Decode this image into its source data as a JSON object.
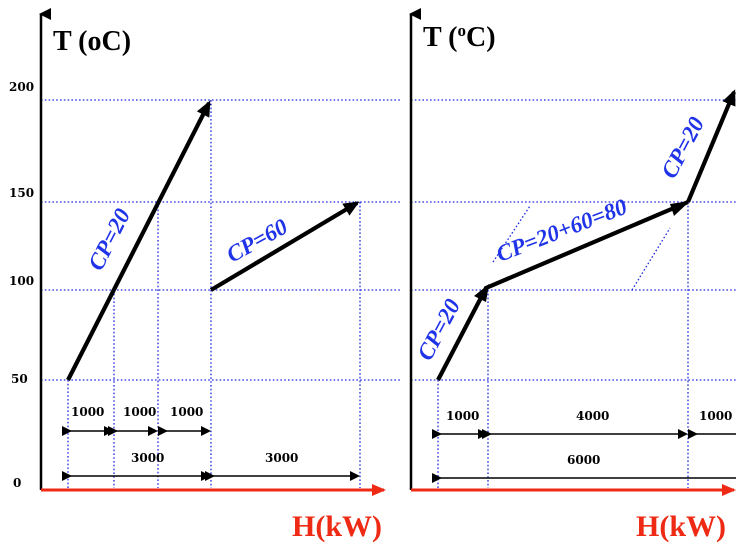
{
  "left": {
    "y_title": "T (oC)",
    "x_title": "H(kW)",
    "y_ticks": [
      "200",
      "150",
      "100",
      "50",
      "0"
    ],
    "stream_labels": [
      "CP=20",
      "CP=60"
    ],
    "dimensions_row1": [
      "1000",
      "1000",
      "1000"
    ],
    "dimensions_row2": [
      "3000",
      "3000"
    ]
  },
  "right": {
    "y_title_prefix": "T (",
    "y_title_degree": "o",
    "y_title_unit": "C)",
    "x_title": "H(kW)",
    "stream_labels": [
      "CP=20",
      "CP=20+60=80",
      "CP=20"
    ],
    "dimensions_row1": [
      "1000",
      "4000",
      "1000"
    ],
    "dimensions_row2": [
      "6000"
    ]
  },
  "colors": {
    "axis": "#000000",
    "enthalpy_axis": "#ee2a14",
    "grid": "#1f2be0",
    "cp_label": "#1f33e8"
  }
}
